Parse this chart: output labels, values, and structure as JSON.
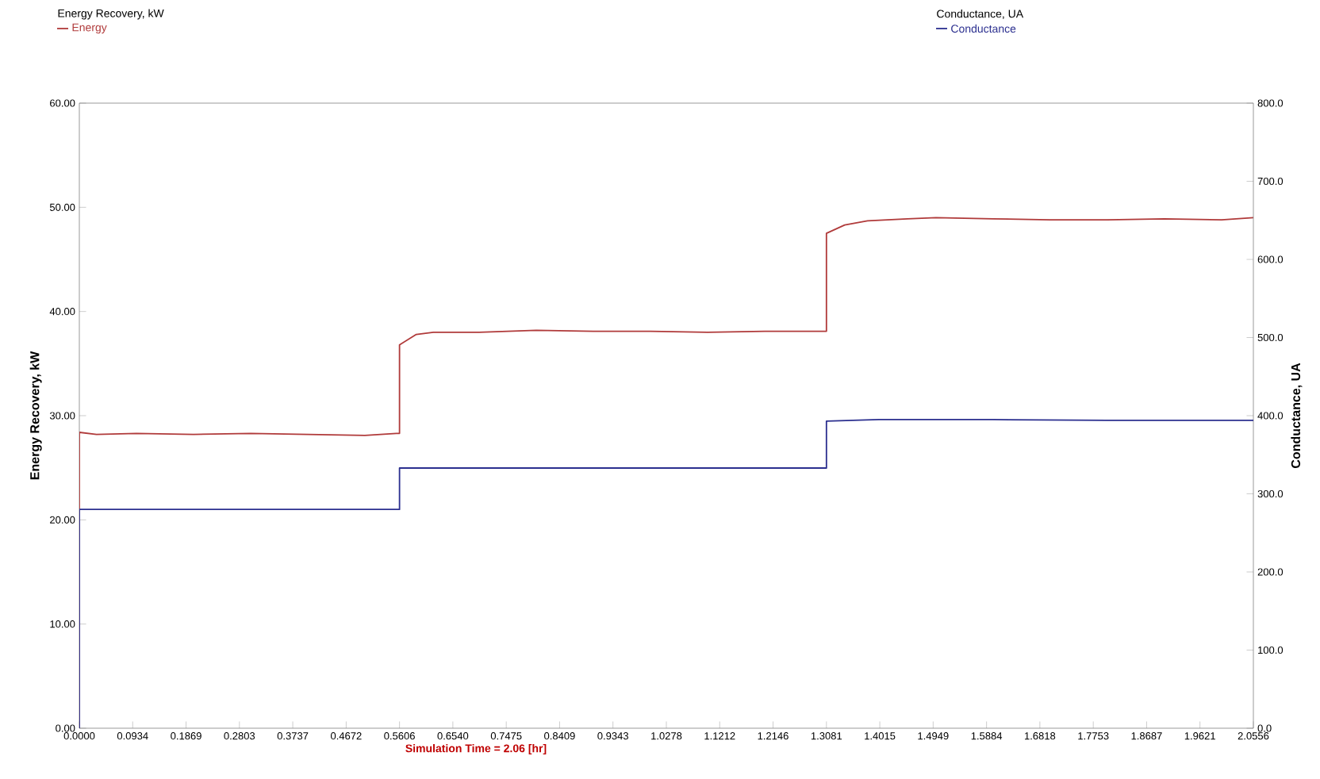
{
  "chart_data": {
    "type": "line",
    "xlabel": "Simulation Time =   2.06 [hr]",
    "ylabel": "Energy Recovery, kW",
    "y2label": "Conductance, UA",
    "annotations": [
      "Energy Recovery, kW",
      "Conductance, UA"
    ],
    "legend": "top",
    "xlim": [
      0,
      2.0556
    ],
    "xticks": [
      {
        "value": 0,
        "label": "0.0000"
      },
      {
        "value": 0.0934,
        "label": "0.0934"
      },
      {
        "value": 0.1869,
        "label": "0.1869"
      },
      {
        "value": 0.2803,
        "label": "0.2803"
      },
      {
        "value": 0.3737,
        "label": "0.3737"
      },
      {
        "value": 0.4672,
        "label": "0.4672"
      },
      {
        "value": 0.5606,
        "label": "0.5606"
      },
      {
        "value": 0.654,
        "label": "0.6540"
      },
      {
        "value": 0.7475,
        "label": "0.7475"
      },
      {
        "value": 0.8409,
        "label": "0.8409"
      },
      {
        "value": 0.9343,
        "label": "0.9343"
      },
      {
        "value": 1.0278,
        "label": "1.0278"
      },
      {
        "value": 1.1212,
        "label": "1.1212"
      },
      {
        "value": 1.2146,
        "label": "1.2146"
      },
      {
        "value": 1.3081,
        "label": "1.3081"
      },
      {
        "value": 1.4015,
        "label": "1.4015"
      },
      {
        "value": 1.4949,
        "label": "1.4949"
      },
      {
        "value": 1.5884,
        "label": "1.5884"
      },
      {
        "value": 1.6818,
        "label": "1.6818"
      },
      {
        "value": 1.7753,
        "label": "1.7753"
      },
      {
        "value": 1.8687,
        "label": "1.8687"
      },
      {
        "value": 1.9621,
        "label": "1.9621"
      },
      {
        "value": 2.0556,
        "label": "2.0556"
      }
    ],
    "ylim": [
      0,
      60
    ],
    "yticks": [
      {
        "value": 0,
        "label": "0.00"
      },
      {
        "value": 10,
        "label": "10.00"
      },
      {
        "value": 20,
        "label": "20.00"
      },
      {
        "value": 30,
        "label": "30.00"
      },
      {
        "value": 40,
        "label": "40.00"
      },
      {
        "value": 50,
        "label": "50.00"
      },
      {
        "value": 60,
        "label": "60.00"
      }
    ],
    "y2lim": [
      0,
      800
    ],
    "y2ticks": [
      {
        "value": 0,
        "label": "0.0"
      },
      {
        "value": 100,
        "label": "100.0"
      },
      {
        "value": 200,
        "label": "200.0"
      },
      {
        "value": 300,
        "label": "300.0"
      },
      {
        "value": 400,
        "label": "400.0"
      },
      {
        "value": 500,
        "label": "500.0"
      },
      {
        "value": 600,
        "label": "600.0"
      },
      {
        "value": 700,
        "label": "700.0"
      },
      {
        "value": 800,
        "label": "800.0"
      }
    ],
    "series": [
      {
        "name": "Energy",
        "color": "#b03a3a",
        "x": [
          0,
          0,
          0.03,
          0.1,
          0.2,
          0.3,
          0.4,
          0.5,
          0.555,
          0.5606,
          0.5606,
          0.59,
          0.62,
          0.7,
          0.8,
          0.9,
          1.0,
          1.1,
          1.2,
          1.3,
          1.3081,
          1.3081,
          1.34,
          1.38,
          1.45,
          1.5,
          1.6,
          1.7,
          1.8,
          1.9,
          2.0,
          2.0556
        ],
        "values": [
          0,
          28.4,
          28.2,
          28.3,
          28.2,
          28.3,
          28.2,
          28.1,
          28.3,
          28.3,
          36.8,
          37.8,
          38.0,
          38.0,
          38.2,
          38.1,
          38.1,
          38.0,
          38.1,
          38.1,
          38.1,
          47.5,
          48.3,
          48.7,
          48.9,
          49.0,
          48.9,
          48.8,
          48.8,
          48.9,
          48.8,
          49.0
        ]
      },
      {
        "name": "Conductance",
        "color": "#2b2f8f",
        "axis": "y2",
        "x": [
          0,
          0,
          0.5606,
          0.5606,
          1.3081,
          1.3081,
          1.4,
          1.6,
          1.8,
          2.0556
        ],
        "values": [
          0,
          280,
          280,
          333,
          333,
          393,
          395,
          395,
          394,
          394
        ]
      }
    ]
  }
}
